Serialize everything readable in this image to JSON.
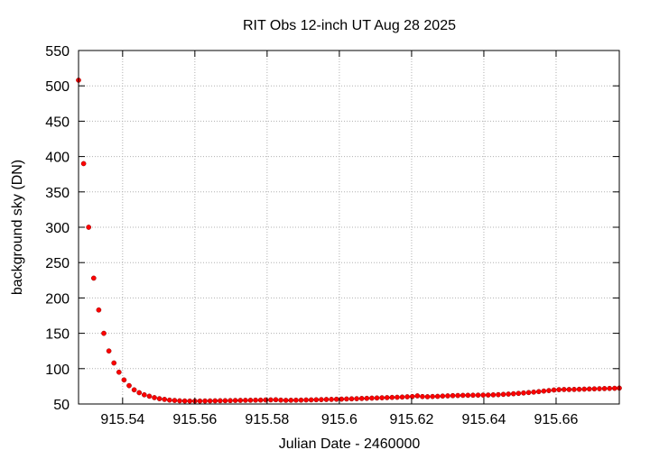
{
  "chart_data": {
    "type": "scatter",
    "title": "RIT Obs 12-inch UT Aug 28 2025",
    "xlabel": "Julian Date - 2460000",
    "ylabel": "background sky (DN)",
    "xlim": [
      915.5278,
      915.6775
    ],
    "ylim": [
      50,
      550
    ],
    "x_ticks": [
      915.54,
      915.56,
      915.58,
      915.6,
      915.62,
      915.64,
      915.66
    ],
    "x_tick_labels": [
      "915.54",
      "915.56",
      "915.58",
      "915.6",
      "915.62",
      "915.64",
      "915.66"
    ],
    "y_ticks": [
      50,
      100,
      150,
      200,
      250,
      300,
      350,
      400,
      450,
      500,
      550
    ],
    "y_tick_labels": [
      "50",
      "100",
      "150",
      "200",
      "250",
      "300",
      "350",
      "400",
      "450",
      "500",
      "550"
    ],
    "grid": true,
    "legend": "none",
    "marker_color": "#ff0000",
    "series": [
      {
        "points": [
          [
            915.5278,
            508
          ],
          [
            915.5292,
            390
          ],
          [
            915.5306,
            300
          ],
          [
            915.532,
            228
          ],
          [
            915.5334,
            183
          ],
          [
            915.5348,
            150
          ],
          [
            915.5362,
            125
          ],
          [
            915.5376,
            108
          ],
          [
            915.539,
            95
          ],
          [
            915.5404,
            84
          ],
          [
            915.5418,
            76
          ],
          [
            915.5432,
            70
          ],
          [
            915.5446,
            66
          ],
          [
            915.546,
            63
          ],
          [
            915.5474,
            61
          ],
          [
            915.5488,
            59
          ],
          [
            915.5502,
            57.5
          ],
          [
            915.5516,
            56.5
          ],
          [
            915.553,
            55.5
          ],
          [
            915.5544,
            55
          ],
          [
            915.5558,
            54.5
          ],
          [
            915.5572,
            54.3
          ],
          [
            915.5586,
            54.2
          ],
          [
            915.56,
            54.2
          ],
          [
            915.5614,
            54.2
          ],
          [
            915.5628,
            54.3
          ],
          [
            915.5642,
            54.4
          ],
          [
            915.5656,
            54.5
          ],
          [
            915.567,
            54.6
          ],
          [
            915.5684,
            54.7
          ],
          [
            915.5698,
            54.8
          ],
          [
            915.5712,
            55
          ],
          [
            915.5726,
            55.1
          ],
          [
            915.574,
            55.2
          ],
          [
            915.5754,
            55.3
          ],
          [
            915.5768,
            55.4
          ],
          [
            915.5782,
            55.5
          ],
          [
            915.5796,
            55.7
          ],
          [
            915.581,
            55.8
          ],
          [
            915.5824,
            56
          ],
          [
            915.5838,
            55.5
          ],
          [
            915.5852,
            55.2
          ],
          [
            915.5866,
            55.3
          ],
          [
            915.588,
            55.4
          ],
          [
            915.5894,
            55.5
          ],
          [
            915.5908,
            55.7
          ],
          [
            915.5922,
            55.8
          ],
          [
            915.5936,
            56
          ],
          [
            915.595,
            56.2
          ],
          [
            915.5964,
            56.4
          ],
          [
            915.5978,
            56.5
          ],
          [
            915.5992,
            56.7
          ],
          [
            915.6006,
            56.9
          ],
          [
            915.602,
            57.1
          ],
          [
            915.6034,
            57.3
          ],
          [
            915.6048,
            57.5
          ],
          [
            915.6062,
            57.8
          ],
          [
            915.6076,
            58
          ],
          [
            915.609,
            58.3
          ],
          [
            915.6104,
            58.5
          ],
          [
            915.6118,
            58.8
          ],
          [
            915.6132,
            59
          ],
          [
            915.6146,
            59.3
          ],
          [
            915.616,
            59.5
          ],
          [
            915.6174,
            59.8
          ],
          [
            915.6188,
            60.2
          ],
          [
            915.6202,
            60.5
          ],
          [
            915.6216,
            61.5
          ],
          [
            915.623,
            60.5
          ],
          [
            915.6244,
            60.3
          ],
          [
            915.6258,
            60.6
          ],
          [
            915.6272,
            60.8
          ],
          [
            915.6286,
            61.2
          ],
          [
            915.63,
            61.5
          ],
          [
            915.6314,
            61.8
          ],
          [
            915.6328,
            62
          ],
          [
            915.6342,
            62.2
          ],
          [
            915.6356,
            62.3
          ],
          [
            915.637,
            62.4
          ],
          [
            915.6384,
            62.5
          ],
          [
            915.6398,
            62.6
          ],
          [
            915.6412,
            62.7
          ],
          [
            915.6426,
            62.9
          ],
          [
            915.644,
            63.2
          ],
          [
            915.6454,
            63.6
          ],
          [
            915.6468,
            64
          ],
          [
            915.6482,
            64.5
          ],
          [
            915.6496,
            65
          ],
          [
            915.651,
            65.6
          ],
          [
            915.6524,
            66.2
          ],
          [
            915.6538,
            66.8
          ],
          [
            915.6552,
            67.5
          ],
          [
            915.6566,
            68.3
          ],
          [
            915.658,
            69
          ],
          [
            915.6594,
            69.8
          ],
          [
            915.6608,
            70.3
          ],
          [
            915.6622,
            70.5
          ],
          [
            915.6636,
            70.5
          ],
          [
            915.665,
            70.6
          ],
          [
            915.6664,
            70.8
          ],
          [
            915.6678,
            71
          ],
          [
            915.6692,
            71.2
          ],
          [
            915.6706,
            71.4
          ],
          [
            915.672,
            71.6
          ],
          [
            915.6734,
            71.8
          ],
          [
            915.6748,
            72
          ],
          [
            915.6762,
            72.2
          ],
          [
            915.6775,
            72.5
          ]
        ]
      }
    ]
  }
}
